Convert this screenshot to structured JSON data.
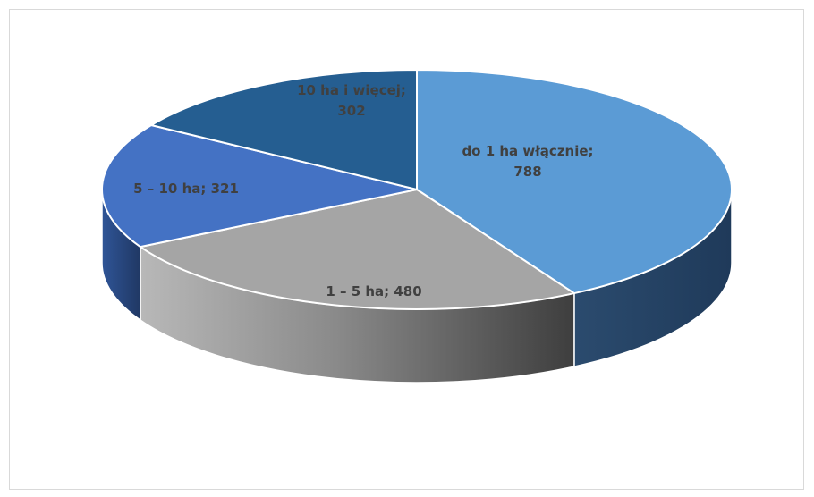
{
  "chart_data": {
    "type": "pie",
    "style": "3d",
    "categories": [
      "do 1 ha włącznie",
      "1 – 5 ha",
      "5 – 10 ha",
      "10 ha i więcej"
    ],
    "values": [
      788,
      480,
      321,
      302
    ],
    "labels": {
      "slice_0": [
        "do 1 ha włącznie;",
        "788"
      ],
      "slice_1": [
        "1 – 5 ha; 480"
      ],
      "slice_2": [
        "5 – 10 ha; 321"
      ],
      "slice_3": [
        "10 ha i więcej;",
        "302"
      ]
    },
    "colors": [
      "#5b9bd5",
      "#a5a5a5",
      "#4472c4",
      "#255e91"
    ],
    "title": "",
    "legend": "none"
  }
}
